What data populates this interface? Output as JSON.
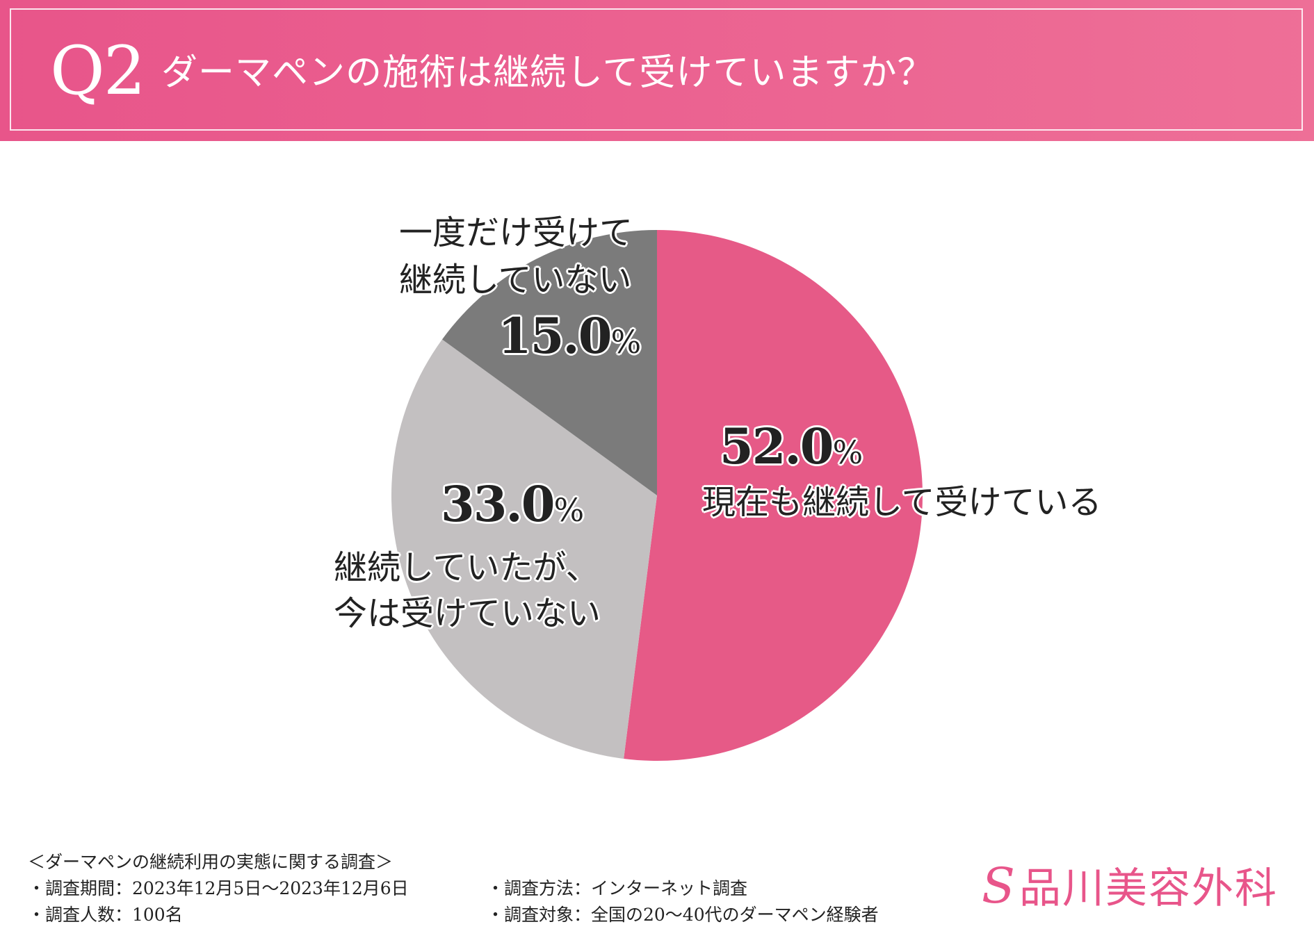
{
  "header": {
    "q_number": "Q2",
    "question": "ダーマペンの施術は継続して受けていますか？"
  },
  "chart_data": {
    "type": "pie",
    "categories": [
      "現在も継続して受けている",
      "継続していたが、今は受けていない",
      "一度だけ受けて継続していない"
    ],
    "values": [
      52.0,
      33.0,
      15.0
    ],
    "colors": [
      "#e65a87",
      "#c3c0c1",
      "#7b7b7b"
    ],
    "slices": [
      {
        "label_lines": [
          "現在も継続して受けている"
        ],
        "pct": "52.0",
        "unit": "%"
      },
      {
        "label_lines": [
          "継続していたが、",
          "今は受けていない"
        ],
        "pct": "33.0",
        "unit": "%"
      },
      {
        "label_lines": [
          "一度だけ受けて",
          "継続していない"
        ],
        "pct": "15.0",
        "unit": "%"
      }
    ]
  },
  "footer": {
    "survey_title": "＜ダーマペンの継続利用の実態に関する調査＞",
    "period": "・調査期間：2023年12月5日～2023年12月6日",
    "respondents": "・調査人数：100名",
    "method": "・調査方法：インターネット調査",
    "target": "・調査対象：全国の20～40代のダーマペン経験者"
  },
  "brand": {
    "mark": "S",
    "name": "品川美容外科",
    "color": "#e8558a"
  }
}
